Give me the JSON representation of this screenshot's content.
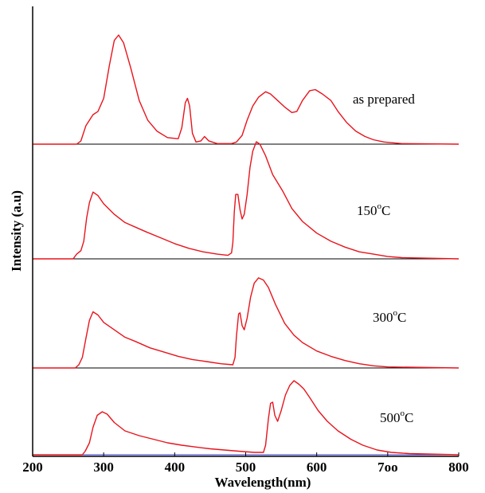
{
  "chart_data": {
    "type": "line",
    "xlabel": "Wavelength(nm)",
    "ylabel": "Intensity (a.u)",
    "xlim": [
      200,
      800
    ],
    "x_ticks": [
      {
        "value": 200,
        "label": "200"
      },
      {
        "value": 300,
        "label": "300"
      },
      {
        "value": 400,
        "label": "400"
      },
      {
        "value": 500,
        "label": "500"
      },
      {
        "value": 600,
        "label": "600"
      },
      {
        "value": 700,
        "label": "7oo"
      },
      {
        "value": 800,
        "label": "800"
      }
    ],
    "stacked_panels": 4,
    "line_color": "#e8141c",
    "baseline_color": "#2a32d8",
    "series": [
      {
        "name": "as prepared",
        "label_text": "as prepared",
        "label_sup": "",
        "label_tail": "",
        "points": [
          [
            200,
            0
          ],
          [
            262,
            0
          ],
          [
            268,
            0.03
          ],
          [
            275,
            0.17
          ],
          [
            285,
            0.27
          ],
          [
            292,
            0.3
          ],
          [
            300,
            0.42
          ],
          [
            308,
            0.72
          ],
          [
            315,
            0.95
          ],
          [
            321,
            1.0
          ],
          [
            328,
            0.93
          ],
          [
            338,
            0.7
          ],
          [
            350,
            0.4
          ],
          [
            362,
            0.22
          ],
          [
            375,
            0.12
          ],
          [
            390,
            0.06
          ],
          [
            405,
            0.05
          ],
          [
            410,
            0.15
          ],
          [
            415,
            0.38
          ],
          [
            418,
            0.42
          ],
          [
            421,
            0.35
          ],
          [
            425,
            0.1
          ],
          [
            430,
            0.02
          ],
          [
            437,
            0.03
          ],
          [
            442,
            0.07
          ],
          [
            448,
            0.03
          ],
          [
            460,
            0.005
          ],
          [
            480,
            0.005
          ],
          [
            487,
            0.02
          ],
          [
            495,
            0.08
          ],
          [
            502,
            0.22
          ],
          [
            510,
            0.35
          ],
          [
            518,
            0.43
          ],
          [
            528,
            0.48
          ],
          [
            535,
            0.46
          ],
          [
            545,
            0.4
          ],
          [
            555,
            0.34
          ],
          [
            565,
            0.29
          ],
          [
            572,
            0.3
          ],
          [
            580,
            0.4
          ],
          [
            590,
            0.49
          ],
          [
            598,
            0.5
          ],
          [
            608,
            0.46
          ],
          [
            620,
            0.4
          ],
          [
            630,
            0.3
          ],
          [
            642,
            0.2
          ],
          [
            655,
            0.12
          ],
          [
            668,
            0.07
          ],
          [
            680,
            0.04
          ],
          [
            695,
            0.02
          ],
          [
            720,
            0.005
          ],
          [
            800,
            0
          ]
        ]
      },
      {
        "name": "150°C",
        "label_text": "150",
        "label_sup": "o",
        "label_tail": "C",
        "points": [
          [
            200,
            0
          ],
          [
            257,
            0
          ],
          [
            262,
            0.04
          ],
          [
            268,
            0.07
          ],
          [
            272,
            0.15
          ],
          [
            276,
            0.35
          ],
          [
            280,
            0.48
          ],
          [
            285,
            0.57
          ],
          [
            292,
            0.54
          ],
          [
            300,
            0.47
          ],
          [
            315,
            0.38
          ],
          [
            330,
            0.31
          ],
          [
            345,
            0.27
          ],
          [
            360,
            0.23
          ],
          [
            380,
            0.18
          ],
          [
            400,
            0.13
          ],
          [
            420,
            0.09
          ],
          [
            440,
            0.06
          ],
          [
            460,
            0.04
          ],
          [
            475,
            0.03
          ],
          [
            480,
            0.05
          ],
          [
            482,
            0.14
          ],
          [
            484,
            0.4
          ],
          [
            486,
            0.55
          ],
          [
            489,
            0.55
          ],
          [
            492,
            0.42
          ],
          [
            495,
            0.34
          ],
          [
            498,
            0.38
          ],
          [
            502,
            0.55
          ],
          [
            506,
            0.78
          ],
          [
            510,
            0.92
          ],
          [
            515,
            1.0
          ],
          [
            520,
            0.98
          ],
          [
            528,
            0.88
          ],
          [
            538,
            0.72
          ],
          [
            552,
            0.58
          ],
          [
            565,
            0.43
          ],
          [
            580,
            0.32
          ],
          [
            600,
            0.22
          ],
          [
            620,
            0.15
          ],
          [
            640,
            0.1
          ],
          [
            660,
            0.06
          ],
          [
            680,
            0.04
          ],
          [
            700,
            0.02
          ],
          [
            720,
            0.01
          ],
          [
            800,
            0
          ]
        ]
      },
      {
        "name": "300°C",
        "label_text": "300",
        "label_sup": "o",
        "label_tail": "C",
        "points": [
          [
            200,
            0
          ],
          [
            260,
            0
          ],
          [
            265,
            0.03
          ],
          [
            270,
            0.1
          ],
          [
            275,
            0.28
          ],
          [
            280,
            0.45
          ],
          [
            285,
            0.53
          ],
          [
            292,
            0.5
          ],
          [
            300,
            0.43
          ],
          [
            315,
            0.36
          ],
          [
            330,
            0.29
          ],
          [
            345,
            0.25
          ],
          [
            365,
            0.19
          ],
          [
            385,
            0.15
          ],
          [
            405,
            0.11
          ],
          [
            425,
            0.08
          ],
          [
            445,
            0.06
          ],
          [
            465,
            0.04
          ],
          [
            482,
            0.03
          ],
          [
            485,
            0.1
          ],
          [
            487,
            0.3
          ],
          [
            490,
            0.51
          ],
          [
            492,
            0.52
          ],
          [
            495,
            0.4
          ],
          [
            498,
            0.36
          ],
          [
            502,
            0.47
          ],
          [
            507,
            0.67
          ],
          [
            512,
            0.8
          ],
          [
            518,
            0.85
          ],
          [
            525,
            0.83
          ],
          [
            532,
            0.76
          ],
          [
            542,
            0.6
          ],
          [
            555,
            0.42
          ],
          [
            568,
            0.31
          ],
          [
            580,
            0.24
          ],
          [
            600,
            0.16
          ],
          [
            620,
            0.11
          ],
          [
            640,
            0.07
          ],
          [
            660,
            0.04
          ],
          [
            680,
            0.02
          ],
          [
            700,
            0.01
          ],
          [
            800,
            0
          ]
        ]
      },
      {
        "name": "500°C",
        "label_text": "500",
        "label_sup": "o",
        "label_tail": "C",
        "points": [
          [
            200,
            0
          ],
          [
            270,
            0
          ],
          [
            274,
            0.03
          ],
          [
            280,
            0.1
          ],
          [
            285,
            0.23
          ],
          [
            291,
            0.33
          ],
          [
            298,
            0.36
          ],
          [
            305,
            0.34
          ],
          [
            315,
            0.27
          ],
          [
            330,
            0.2
          ],
          [
            350,
            0.16
          ],
          [
            370,
            0.13
          ],
          [
            390,
            0.1
          ],
          [
            410,
            0.08
          ],
          [
            430,
            0.065
          ],
          [
            450,
            0.05
          ],
          [
            470,
            0.04
          ],
          [
            490,
            0.03
          ],
          [
            512,
            0.02
          ],
          [
            525,
            0.02
          ],
          [
            528,
            0.08
          ],
          [
            532,
            0.3
          ],
          [
            535,
            0.43
          ],
          [
            538,
            0.44
          ],
          [
            541,
            0.33
          ],
          [
            545,
            0.28
          ],
          [
            550,
            0.37
          ],
          [
            556,
            0.5
          ],
          [
            562,
            0.58
          ],
          [
            568,
            0.62
          ],
          [
            575,
            0.59
          ],
          [
            582,
            0.55
          ],
          [
            590,
            0.48
          ],
          [
            602,
            0.37
          ],
          [
            615,
            0.28
          ],
          [
            630,
            0.2
          ],
          [
            648,
            0.13
          ],
          [
            665,
            0.08
          ],
          [
            685,
            0.04
          ],
          [
            705,
            0.02
          ],
          [
            730,
            0.01
          ],
          [
            800,
            0
          ]
        ]
      }
    ]
  }
}
